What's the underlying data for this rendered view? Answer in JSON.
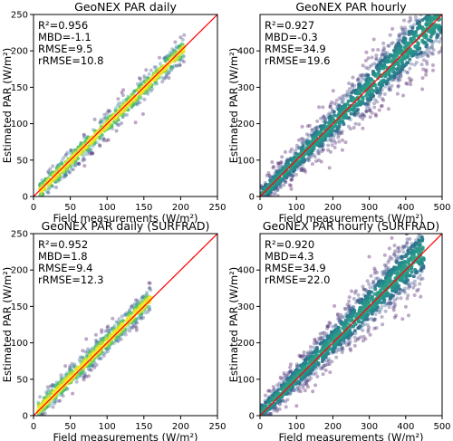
{
  "chart_data": [
    {
      "type": "scatter",
      "title": "GeoNEX PAR daily",
      "xlabel": "Field measurements (W/m²)",
      "ylabel": "Estimated PAR (W/m²)",
      "xlim": [
        0,
        250
      ],
      "ylim": [
        0,
        250
      ],
      "xticks": [
        0,
        50,
        100,
        150,
        200,
        250
      ],
      "yticks": [
        0,
        50,
        100,
        150,
        200,
        250
      ],
      "stats": [
        "R²=0.956",
        "MBD=-1.1",
        "RMSE=9.5",
        "rRMSE=10.8"
      ],
      "one_to_one_line": true,
      "line_color": "#ff0000",
      "density_coloring": "viridis",
      "series": [
        {
          "x_range": [
            8,
            205
          ],
          "spread": 9.5,
          "bias": -1.1
        }
      ]
    },
    {
      "type": "scatter",
      "title": "GeoNEX PAR hourly",
      "xlabel": "Field measurements (W/m²)",
      "ylabel": "Estimated PAR (W/m²)",
      "xlim": [
        0,
        500
      ],
      "ylim": [
        0,
        500
      ],
      "xticks": [
        0,
        100,
        200,
        300,
        400,
        500
      ],
      "yticks": [
        0,
        100,
        200,
        300,
        400
      ],
      "stats": [
        "R²=0.927",
        "MBD=-0.3",
        "RMSE=34.9",
        "rRMSE=19.6"
      ],
      "one_to_one_line": true,
      "line_color": "#ff0000",
      "density_coloring": "viridis",
      "series": [
        {
          "x_range": [
            0,
            500
          ],
          "spread": 34.9,
          "bias": -0.3
        }
      ]
    },
    {
      "type": "scatter",
      "title": "GeoNEX PAR daily (SURFRAD)",
      "xlabel": "Field measurements (W/m²)",
      "ylabel": "Estimated PAR (W/m²)",
      "xlim": [
        0,
        250
      ],
      "ylim": [
        0,
        250
      ],
      "xticks": [
        0,
        50,
        100,
        150,
        200,
        250
      ],
      "yticks": [
        0,
        50,
        100,
        150,
        200,
        250
      ],
      "stats": [
        "R²=0.952",
        "MBD=1.8",
        "RMSE=9.4",
        "rRMSE=12.3"
      ],
      "one_to_one_line": true,
      "line_color": "#ff0000",
      "density_coloring": "viridis",
      "series": [
        {
          "x_range": [
            5,
            160
          ],
          "spread": 9.4,
          "bias": 1.8
        }
      ]
    },
    {
      "type": "scatter",
      "title": "GeoNEX PAR hourly (SURFRAD)",
      "xlabel": "Field measurements (W/m²)",
      "ylabel": "Estimated PAR (W/m²)",
      "xlim": [
        0,
        500
      ],
      "ylim": [
        0,
        500
      ],
      "xticks": [
        0,
        100,
        200,
        300,
        400,
        500
      ],
      "yticks": [
        0,
        100,
        200,
        300,
        400
      ],
      "stats": [
        "R²=0.920",
        "MBD=4.3",
        "RMSE=34.9",
        "rRMSE=22.0"
      ],
      "one_to_one_line": true,
      "line_color": "#ff0000",
      "density_coloring": "viridis",
      "series": [
        {
          "x_range": [
            0,
            450
          ],
          "spread": 34.9,
          "bias": 4.3
        }
      ]
    }
  ]
}
